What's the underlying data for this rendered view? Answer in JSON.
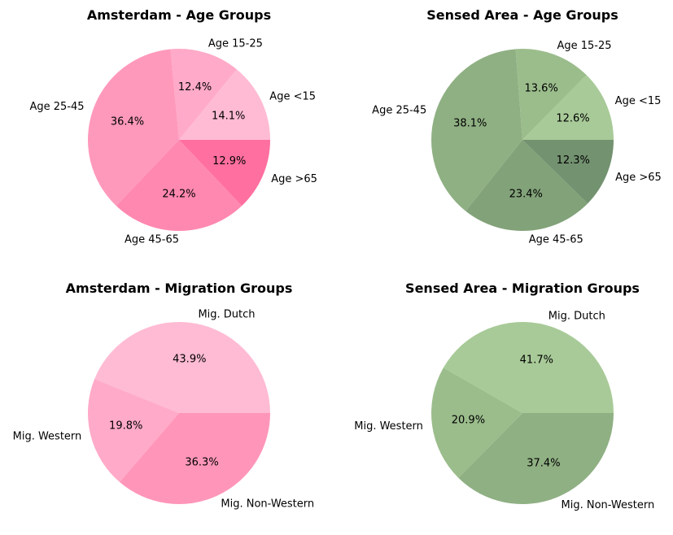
{
  "chart_data": [
    {
      "type": "pie",
      "title": "Amsterdam - Age Groups",
      "categories": [
        "Age <15",
        "Age 15-25",
        "Age 25-45",
        "Age 45-65",
        "Age >65"
      ],
      "values": [
        14.1,
        12.4,
        36.4,
        24.2,
        12.9
      ],
      "value_labels": [
        "14.1%",
        "12.4%",
        "36.4%",
        "24.2%",
        "12.9%"
      ],
      "colors": [
        "#ffbbd4",
        "#ffaac8",
        "#ff99bb",
        "#ff88b0",
        "#ff6f9f"
      ],
      "start_angle": 0,
      "direction": "counterclockwise"
    },
    {
      "type": "pie",
      "title": "Sensed Area - Age Groups",
      "categories": [
        "Age <15",
        "Age 15-25",
        "Age 25-45",
        "Age 45-65",
        "Age >65"
      ],
      "values": [
        12.6,
        13.6,
        38.1,
        23.4,
        12.3
      ],
      "value_labels": [
        "12.6%",
        "13.6%",
        "38.1%",
        "23.4%",
        "12.3%"
      ],
      "colors": [
        "#a8ca98",
        "#9bbd8c",
        "#8fb083",
        "#82a279",
        "#739270"
      ],
      "start_angle": 0,
      "direction": "counterclockwise"
    },
    {
      "type": "pie",
      "title": "Amsterdam - Migration Groups",
      "categories": [
        "Mig. Dutch",
        "Mig. Western",
        "Mig. Non-Western"
      ],
      "values": [
        43.9,
        19.8,
        36.3
      ],
      "value_labels": [
        "43.9%",
        "19.8%",
        "36.3%"
      ],
      "colors": [
        "#ffbbd4",
        "#ffaac8",
        "#ff96b9"
      ],
      "start_angle": 0,
      "direction": "counterclockwise"
    },
    {
      "type": "pie",
      "title": "Sensed Area - Migration Groups",
      "categories": [
        "Mig. Dutch",
        "Mig. Western",
        "Mig. Non-Western"
      ],
      "values": [
        41.7,
        20.9,
        37.4
      ],
      "value_labels": [
        "41.7%",
        "20.9%",
        "37.4%"
      ],
      "colors": [
        "#a8ca98",
        "#9bbd8c",
        "#8fb083"
      ],
      "start_angle": 0,
      "direction": "counterclockwise"
    }
  ]
}
